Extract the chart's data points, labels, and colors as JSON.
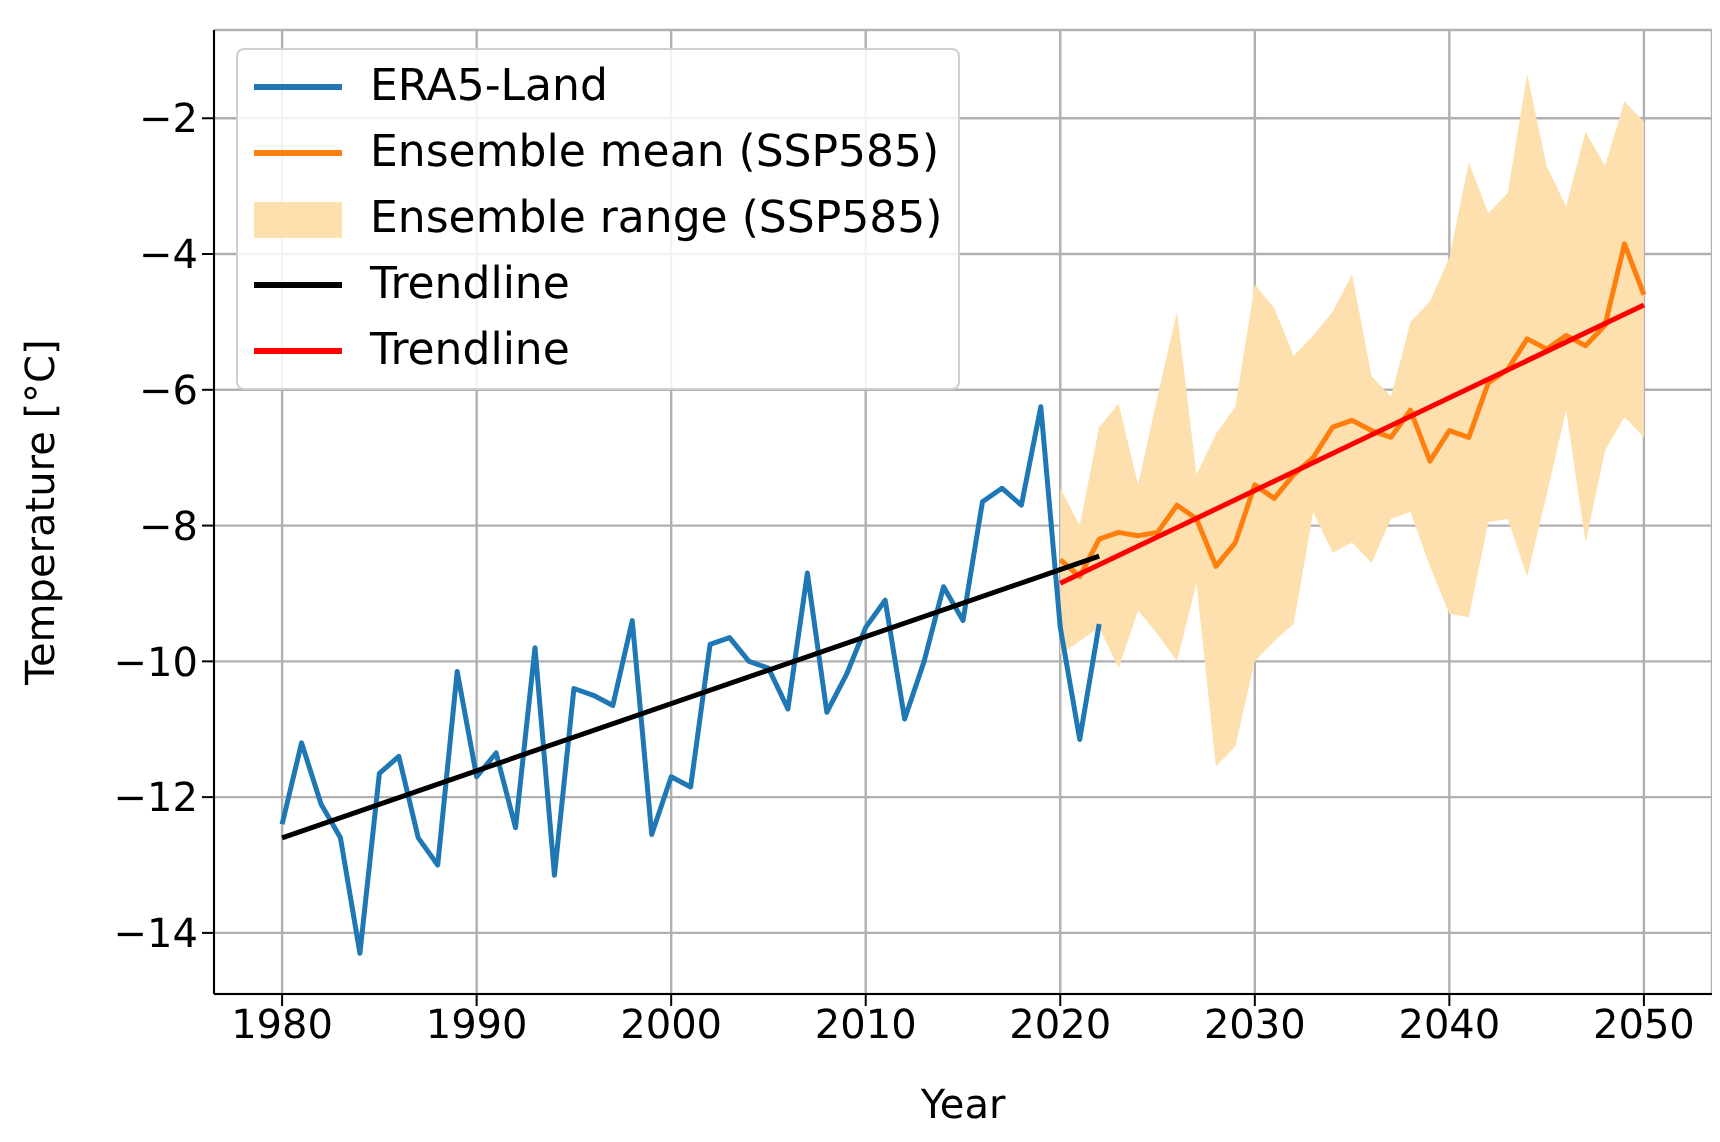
{
  "chart_data": {
    "type": "line",
    "xlabel": "Year",
    "ylabel": "Temperature [°C]",
    "xlim": [
      1976.5,
      2053.5
    ],
    "ylim": [
      -14.9,
      -0.7
    ],
    "xticks": [
      1980,
      1990,
      2000,
      2010,
      2020,
      2030,
      2040,
      2050
    ],
    "yticks": [
      {
        "value": -14,
        "label": "−14"
      },
      {
        "value": -12,
        "label": "−12"
      },
      {
        "value": -10,
        "label": "−10"
      },
      {
        "value": -8,
        "label": "−8"
      },
      {
        "value": -6,
        "label": "−6"
      },
      {
        "value": -4,
        "label": "−4"
      },
      {
        "value": -2,
        "label": "−2"
      }
    ],
    "grid": true,
    "legend": "top left",
    "line_style": "solid",
    "marker": "none",
    "series": [
      {
        "type": "line",
        "name": "ERA5-Land",
        "color": "#1f77b4",
        "x": [
          1980,
          1981,
          1982,
          1983,
          1984,
          1985,
          1986,
          1987,
          1988,
          1989,
          1990,
          1991,
          1992,
          1993,
          1994,
          1995,
          1996,
          1997,
          1998,
          1999,
          2000,
          2001,
          2002,
          2003,
          2004,
          2005,
          2006,
          2007,
          2008,
          2009,
          2010,
          2011,
          2012,
          2013,
          2014,
          2015,
          2016,
          2017,
          2018,
          2019,
          2020,
          2021,
          2022
        ],
        "values": [
          -12.4,
          -11.2,
          -12.1,
          -12.6,
          -14.3,
          -11.65,
          -11.4,
          -12.6,
          -13.0,
          -10.15,
          -11.7,
          -11.35,
          -12.45,
          -9.8,
          -13.15,
          -10.4,
          -10.5,
          -10.65,
          -9.4,
          -12.55,
          -11.7,
          -11.85,
          -9.75,
          -9.65,
          -10.0,
          -10.1,
          -10.7,
          -8.7,
          -10.75,
          -10.2,
          -9.5,
          -9.1,
          -10.85,
          -10.0,
          -8.9,
          -9.4,
          -7.65,
          -7.45,
          -7.7,
          -6.25,
          -9.5,
          -11.15,
          -9.45
        ]
      },
      {
        "type": "line",
        "name": "Ensemble mean (SSP585)",
        "color": "#ff7f0e",
        "x": [
          2020,
          2021,
          2022,
          2023,
          2024,
          2025,
          2026,
          2027,
          2028,
          2029,
          2030,
          2031,
          2032,
          2033,
          2034,
          2035,
          2036,
          2037,
          2038,
          2039,
          2040,
          2041,
          2042,
          2043,
          2044,
          2045,
          2046,
          2047,
          2048,
          2049,
          2050
        ],
        "values": [
          -8.5,
          -8.75,
          -8.2,
          -8.1,
          -8.15,
          -8.1,
          -7.7,
          -7.9,
          -8.6,
          -8.25,
          -7.4,
          -7.6,
          -7.25,
          -7.0,
          -6.55,
          -6.45,
          -6.6,
          -6.7,
          -6.3,
          -7.05,
          -6.6,
          -6.7,
          -5.9,
          -5.7,
          -5.25,
          -5.4,
          -5.2,
          -5.35,
          -5.05,
          -3.85,
          -4.6
        ],
        "lower": [
          -9.9,
          -9.7,
          -9.5,
          -10.1,
          -9.25,
          -9.6,
          -10.0,
          -8.85,
          -11.55,
          -11.25,
          -10.0,
          -9.7,
          -9.45,
          -7.8,
          -8.4,
          -8.25,
          -8.55,
          -7.9,
          -7.8,
          -8.6,
          -9.3,
          -9.35,
          -7.95,
          -7.9,
          -8.75,
          -7.55,
          -6.3,
          -8.25,
          -6.9,
          -6.4,
          -6.7
        ],
        "upper": [
          -7.45,
          -8.0,
          -6.55,
          -6.2,
          -7.4,
          -6.1,
          -4.85,
          -7.25,
          -6.65,
          -6.25,
          -4.45,
          -4.8,
          -5.5,
          -5.2,
          -4.85,
          -4.3,
          -5.8,
          -6.1,
          -5.0,
          -4.7,
          -4.05,
          -2.65,
          -3.4,
          -3.1,
          -1.35,
          -2.7,
          -3.3,
          -2.2,
          -2.7,
          -1.75,
          -2.05
        ]
      },
      {
        "type": "area",
        "name": "Ensemble range (SSP585)",
        "color": "#fde0ae"
      },
      {
        "type": "line",
        "name": "Trendline",
        "color": "#000000",
        "x": [
          1980,
          2022
        ],
        "values": [
          -12.6,
          -8.45
        ]
      },
      {
        "type": "line",
        "name": "Trendline",
        "color": "#ff0000",
        "x": [
          2020,
          2050
        ],
        "values": [
          -8.85,
          -4.75
        ]
      }
    ]
  }
}
